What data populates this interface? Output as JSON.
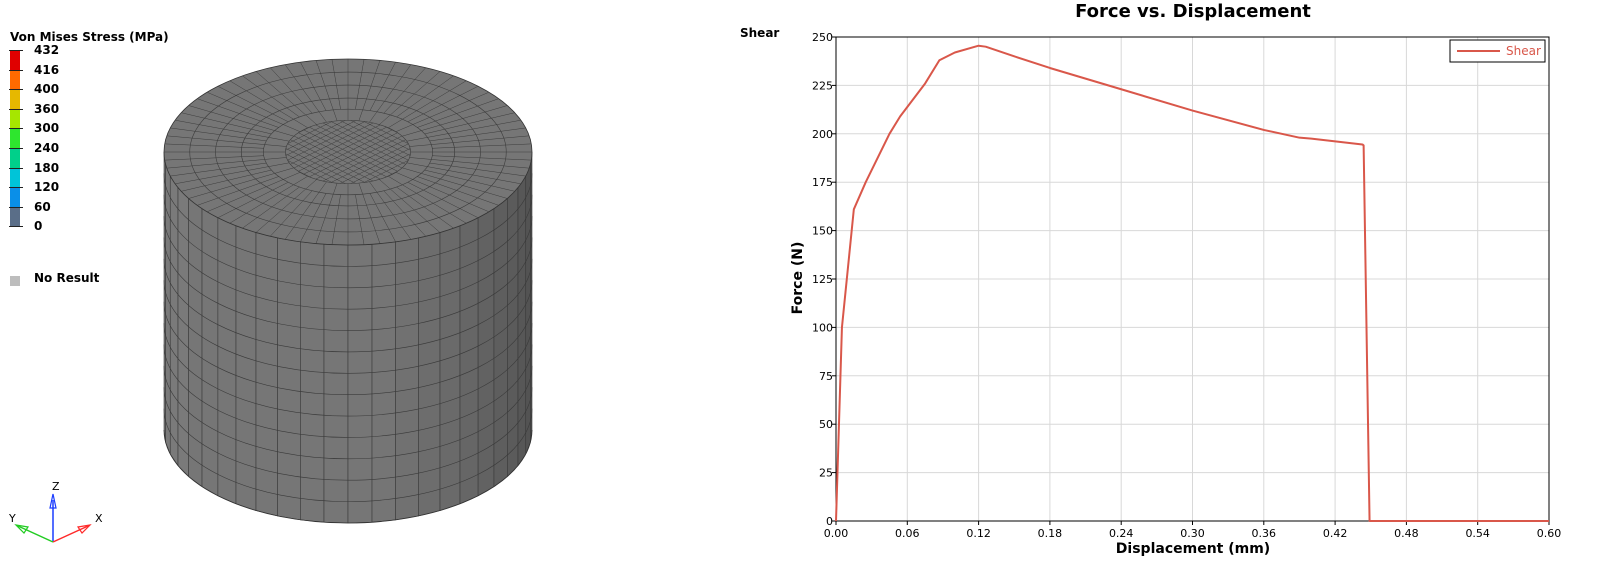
{
  "viewport": {
    "legend": {
      "title": "Von Mises Stress (MPa)",
      "entries": [
        {
          "label": "432",
          "color": "#e00000"
        },
        {
          "label": "416",
          "color": "#ff6a00"
        },
        {
          "label": "400",
          "color": "#e6b800"
        },
        {
          "label": "360",
          "color": "#a6e600"
        },
        {
          "label": "300",
          "color": "#2ee62e"
        },
        {
          "label": "240",
          "color": "#00d08a"
        },
        {
          "label": "180",
          "color": "#00c4d8"
        },
        {
          "label": "120",
          "color": "#0a8fe8"
        },
        {
          "label": "60",
          "color": "#5a6e88"
        },
        {
          "label": "0",
          "color": "#777777"
        }
      ],
      "no_result_label": "No Result",
      "no_result_color": "#bdbdbd"
    },
    "triad": {
      "z": "Z",
      "y": "Y",
      "x": "X"
    }
  },
  "shear_label": "Shear",
  "chart_data": {
    "type": "line",
    "title": "Force vs. Displacement",
    "xlabel": "Displacement (mm)",
    "ylabel": "Force (N)",
    "xlim": [
      0,
      0.6
    ],
    "ylim": [
      0,
      250
    ],
    "xticks": [
      "0.00",
      "0.06",
      "0.12",
      "0.18",
      "0.24",
      "0.30",
      "0.36",
      "0.42",
      "0.48",
      "0.54",
      "0.60"
    ],
    "yticks": [
      "0",
      "25",
      "50",
      "75",
      "100",
      "125",
      "150",
      "175",
      "200",
      "225",
      "250"
    ],
    "grid": true,
    "legend_position": "top-right",
    "series": [
      {
        "name": "Shear",
        "color": "#d9574a",
        "x": [
          0.0,
          0.005,
          0.015,
          0.025,
          0.045,
          0.054,
          0.075,
          0.087,
          0.1,
          0.12,
          0.126,
          0.15,
          0.18,
          0.24,
          0.3,
          0.36,
          0.39,
          0.4,
          0.443,
          0.444,
          0.449,
          0.6
        ],
        "y": [
          0,
          100,
          161,
          175,
          200,
          209,
          226,
          238,
          242,
          245.5,
          245,
          240,
          234,
          223,
          212,
          202,
          198,
          197.5,
          194.5,
          194,
          0,
          0
        ]
      }
    ]
  }
}
